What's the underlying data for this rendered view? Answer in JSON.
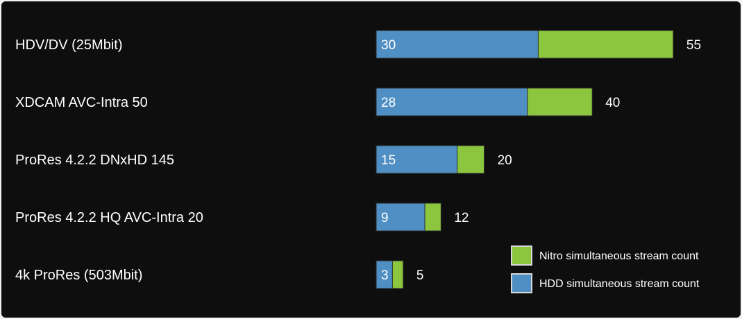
{
  "chart_data": {
    "type": "bar",
    "orientation": "horizontal",
    "stacked": true,
    "categories": [
      "HDV/DV (25Mbit)",
      "XDCAM AVC-Intra 50",
      "ProRes 4.2.2 DNxHD 145",
      "ProRes 4.2.2 HQ AVC-Intra 20",
      "4k ProRes (503Mbit)"
    ],
    "series": [
      {
        "name": "HDD simultaneous stream count",
        "values": [
          30,
          28,
          15,
          9,
          3
        ],
        "color": "#4f8fc3"
      },
      {
        "name": "Nitro simultaneous stream count",
        "values": [
          55,
          40,
          20,
          12,
          5
        ],
        "color": "#8cc63e"
      }
    ],
    "title": "",
    "xlabel": "",
    "ylabel": "",
    "grid": false,
    "legend_position": "bottom-right",
    "legend_order": [
      "Nitro simultaneous stream count",
      "HDD simultaneous stream count"
    ]
  }
}
